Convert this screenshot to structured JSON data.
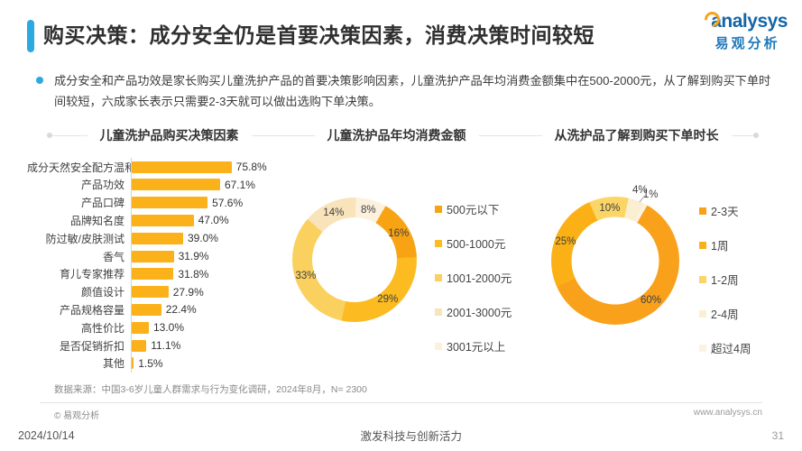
{
  "header": {
    "title": "购买决策：成分安全仍是首要决策因素，消费决策时间较短",
    "logo_text": "analysys",
    "logo_subtext": "易观分析",
    "accent_color": "#2BA9E0"
  },
  "summary": {
    "text": "成分安全和产品功效是家长购买儿童洗护产品的首要决策影响因素，儿童洗护产品年均消费金额集中在500-2000元，从了解到购买下单时间较短，六成家长表示只需要2-3天就可以做出选购下单决策。"
  },
  "chart_data": [
    {
      "type": "bar",
      "title": "儿童洗护品购买决策因素",
      "orientation": "horizontal",
      "categories": [
        "成分天然安全配方温和",
        "产品功效",
        "产品口碑",
        "品牌知名度",
        "防过敏/皮肤测试",
        "香气",
        "育儿专家推荐",
        "颜值设计",
        "产品规格容量",
        "高性价比",
        "是否促销折扣",
        "其他"
      ],
      "values": [
        75.8,
        67.1,
        57.6,
        47.0,
        39.0,
        31.9,
        31.8,
        27.9,
        22.4,
        13.0,
        11.1,
        1.5
      ],
      "unit": "%",
      "bar_color": "#FBB11A",
      "xlim": [
        0,
        100
      ],
      "grid": false,
      "value_labels": true
    },
    {
      "type": "pie",
      "title": "儿童洗护品年均消费金额",
      "donut": true,
      "start_angle_deg": 30,
      "legend_position": "right",
      "slices": [
        {
          "label": "500元以下",
          "value": 16,
          "color": "#F7A313"
        },
        {
          "label": "500-1000元",
          "value": 29,
          "color": "#FBBB21"
        },
        {
          "label": "1001-2000元",
          "value": 33,
          "color": "#FAD05E"
        },
        {
          "label": "2001-3000元",
          "value": 14,
          "color": "#F8E3BA"
        },
        {
          "label": "3001元以上",
          "value": 8,
          "color": "#FCF1DC"
        }
      ]
    },
    {
      "type": "pie",
      "title": "从洗护品了解到购买下单时长",
      "donut": true,
      "start_angle_deg": 30,
      "legend_position": "right",
      "slices": [
        {
          "label": "2-3天",
          "value": 60,
          "color": "#F9A11B"
        },
        {
          "label": "1周",
          "value": 25,
          "color": "#FBB116"
        },
        {
          "label": "1-2周",
          "value": 10,
          "color": "#FBD566"
        },
        {
          "label": "2-4周",
          "value": 4,
          "color": "#FBEFD2"
        },
        {
          "label": "超过4周",
          "value": 1,
          "color": "#FAF3E2"
        }
      ]
    }
  ],
  "footer": {
    "source": "数据来源：中国3-6岁儿童人群需求与行为变化调研，2024年8月，N= 2300",
    "copyright": "© 易观分析",
    "website": "www.analysys.cn",
    "date": "2024/10/14",
    "slogan": "激发科技与创新活力",
    "page": "31"
  }
}
